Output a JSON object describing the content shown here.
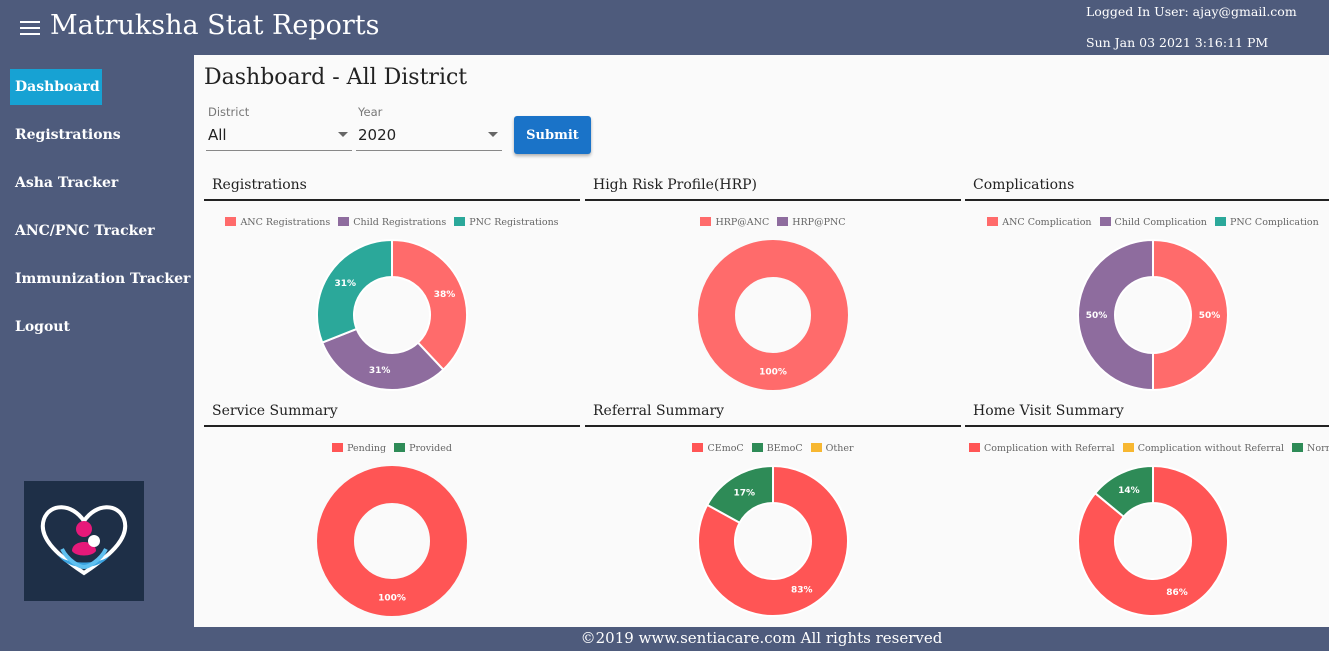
{
  "header": {
    "title": "Matruksha Stat Reports",
    "user": "Logged In User: ajay@gmail.com",
    "datetime": "Sun Jan 03 2021 3:16:11 PM"
  },
  "sidebar": {
    "items": [
      {
        "label": "Dashboard",
        "active": true
      },
      {
        "label": "Registrations"
      },
      {
        "label": "Asha Tracker"
      },
      {
        "label": "ANC/PNC Tracker"
      },
      {
        "label": "Immunization Tracker"
      },
      {
        "label": "Logout"
      }
    ]
  },
  "main": {
    "title": "Dashboard - All District",
    "filters": {
      "district": {
        "label": "District",
        "value": "All"
      },
      "year": {
        "label": "Year",
        "value": "2020"
      }
    },
    "submit_label": "Submit"
  },
  "footer": {
    "text": "©2019 www.sentiacare.com All rights reserved"
  },
  "chart_data": [
    {
      "type": "pie",
      "title": "Registrations",
      "categories": [
        "ANC Registrations",
        "Child Registrations",
        "PNC Registrations"
      ],
      "colors": [
        "#ff6b6b",
        "#8e6c9e",
        "#2ba89a"
      ],
      "values": [
        38,
        31,
        31
      ],
      "labels": [
        "38%",
        "31%",
        "31%"
      ]
    },
    {
      "type": "pie",
      "title": "High Risk Profile(HRP)",
      "categories": [
        "HRP@ANC",
        "HRP@PNC"
      ],
      "colors": [
        "#ff6b6b",
        "#8e6c9e"
      ],
      "values": [
        100,
        0
      ],
      "labels": [
        "100%",
        ""
      ]
    },
    {
      "type": "pie",
      "title": "Complications",
      "categories": [
        "ANC Complication",
        "Child Complication",
        "PNC Complication"
      ],
      "colors": [
        "#ff6b6b",
        "#8e6c9e",
        "#2ba89a"
      ],
      "values": [
        50,
        50,
        0
      ],
      "labels": [
        "50%",
        "50%",
        ""
      ]
    },
    {
      "type": "pie",
      "title": "Service Summary",
      "categories": [
        "Pending",
        "Provided"
      ],
      "colors": [
        "#ff5555",
        "#2e8b57"
      ],
      "values": [
        100,
        0
      ],
      "labels": [
        "100%",
        ""
      ]
    },
    {
      "type": "pie",
      "title": "Referral Summary",
      "categories": [
        "CEmoC",
        "BEmoC",
        "Other"
      ],
      "colors": [
        "#ff5555",
        "#2e8b57",
        "#f7b731"
      ],
      "values": [
        83,
        17,
        0
      ],
      "labels": [
        "83%",
        "17%",
        ""
      ]
    },
    {
      "type": "pie",
      "title": "Home Visit Summary",
      "categories": [
        "Complication with Referral",
        "Complication without Referral",
        "Normal"
      ],
      "colors": [
        "#ff5555",
        "#f7b731",
        "#2e8b57"
      ],
      "values": [
        86,
        0,
        14
      ],
      "labels": [
        "86%",
        "",
        "14%"
      ]
    }
  ]
}
